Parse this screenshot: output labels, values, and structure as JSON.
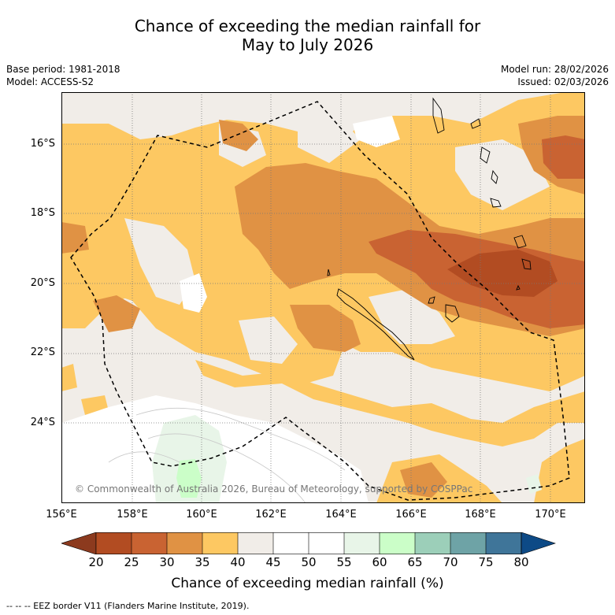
{
  "title": {
    "line1": "Chance of exceeding the median rainfall for",
    "line2": "May to July 2026"
  },
  "meta": {
    "base_period": "Base period: 1981-2018",
    "model": "Model: ACCESS-S2",
    "model_run": "Model run: 28/02/2026",
    "issued": "Issued: 02/03/2026"
  },
  "map": {
    "lat_labels": [
      "16°S",
      "18°S",
      "20°S",
      "22°S",
      "24°S"
    ],
    "lon_labels": [
      "156°E",
      "158°E",
      "160°E",
      "162°E",
      "164°E",
      "166°E",
      "168°E",
      "170°E"
    ],
    "copyright": "© Commonwealth of Australia 2026, Bureau of Meteorology, supported by COSPPac"
  },
  "colorbar": {
    "ticks": [
      "20",
      "25",
      "30",
      "35",
      "40",
      "45",
      "50",
      "55",
      "60",
      "65",
      "70",
      "75",
      "80"
    ],
    "colors": {
      "lt20": "#8c3a1e",
      "c20_25": "#b24c22",
      "c25_30": "#c96332",
      "c30_35": "#e09244",
      "c35_40": "#fdc862",
      "c40_45": "#f1ede8",
      "c45_50": "#ffffff",
      "c50_55": "#ffffff",
      "c55_60": "#e8f5e8",
      "c60_65": "#cbfec8",
      "c65_70": "#9ccfb9",
      "c70_75": "#6ea3a6",
      "c75_80": "#3f7599",
      "gt80": "#0d4a86"
    },
    "title": "Chance of exceeding median rainfall (%)"
  },
  "footnote": "-- -- -- EEZ border V11 (Flanders Marine Institute, 2019)."
}
